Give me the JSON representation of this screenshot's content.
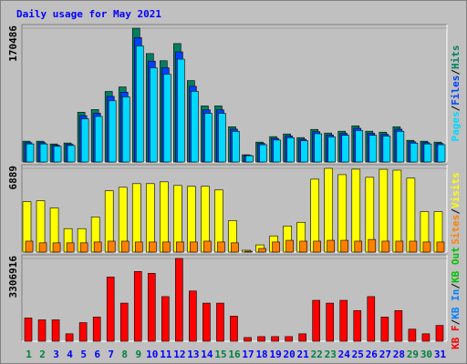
{
  "title": "Daily usage for May 2021",
  "legend_separator": "/",
  "chart_data": [
    {
      "type": "bar",
      "ylim": [
        0,
        170486
      ],
      "yticks": [
        170486
      ],
      "series": [
        {
          "name": "Hits",
          "color": "#008060",
          "values": [
            26500,
            26500,
            23000,
            24200,
            63400,
            66800,
            89900,
            95600,
            170486,
            138200,
            129000,
            150900,
            103700,
            71400,
            71400,
            44900,
            9200,
            25300,
            32300,
            35700,
            31100,
            41500,
            36900,
            39200,
            46100,
            39200,
            38000,
            44900,
            27600,
            26500,
            25300
          ]
        },
        {
          "name": "Files",
          "color": "#0040ff",
          "values": [
            24600,
            24600,
            21400,
            22500,
            59000,
            62100,
            83600,
            88900,
            158500,
            128500,
            120000,
            140300,
            96400,
            66400,
            66400,
            41800,
            8600,
            23500,
            30000,
            33200,
            28900,
            38600,
            34300,
            36500,
            42900,
            36500,
            35300,
            41800,
            25700,
            24600,
            23500
          ]
        },
        {
          "name": "Pages",
          "color": "#00d8ff",
          "values": [
            23000,
            23000,
            20000,
            21000,
            55000,
            58000,
            78000,
            83000,
            148000,
            120000,
            112000,
            131000,
            90000,
            62000,
            62000,
            39000,
            8000,
            22000,
            28000,
            31000,
            27000,
            36000,
            32000,
            34000,
            40000,
            34000,
            33000,
            39000,
            24000,
            23000,
            22000
          ]
        }
      ]
    },
    {
      "type": "bar",
      "ylim": [
        0,
        6889
      ],
      "yticks": [
        6889
      ],
      "series": [
        {
          "name": "Visits",
          "color": "#ffff00",
          "values": [
            4150,
            4220,
            3630,
            1930,
            1930,
            2890,
            5040,
            5330,
            5630,
            5630,
            5780,
            5480,
            5410,
            5410,
            5110,
            2590,
            150,
            590,
            1330,
            2150,
            2450,
            6000,
            6889,
            6370,
            6820,
            6150,
            6810,
            6740,
            6080,
            3330,
            3330
          ]
        },
        {
          "name": "Sites",
          "color": "#ff8000",
          "values": [
            900,
            760,
            760,
            760,
            760,
            830,
            900,
            900,
            830,
            830,
            830,
            830,
            830,
            900,
            830,
            760,
            70,
            300,
            830,
            970,
            900,
            900,
            970,
            970,
            900,
            1040,
            900,
            900,
            900,
            830,
            830
          ]
        }
      ]
    },
    {
      "type": "bar",
      "ylim": [
        0,
        3306916
      ],
      "yticks": [
        3306916
      ],
      "categories": [
        "1",
        "2",
        "3",
        "4",
        "5",
        "6",
        "7",
        "8",
        "9",
        "10",
        "11",
        "12",
        "13",
        "14",
        "15",
        "16",
        "17",
        "18",
        "19",
        "20",
        "21",
        "22",
        "23",
        "24",
        "25",
        "26",
        "27",
        "28",
        "29",
        "30",
        "31"
      ],
      "category_colors": [
        "#008040",
        "#008040",
        "#0000ff",
        "#0000ff",
        "#0000ff",
        "#0000ff",
        "#0000ff",
        "#008040",
        "#008040",
        "#0000ff",
        "#0000ff",
        "#0000ff",
        "#0000ff",
        "#0000ff",
        "#008040",
        "#008040",
        "#0000ff",
        "#0000ff",
        "#0000ff",
        "#0000ff",
        "#0000ff",
        "#008040",
        "#008040",
        "#0000ff",
        "#0000ff",
        "#0000ff",
        "#0000ff",
        "#0000ff",
        "#008040",
        "#008040",
        "#0000ff"
      ],
      "series": [
        {
          "name": "KB Out",
          "color": "#00c000"
        },
        {
          "name": "KB In",
          "color": "#0080ff"
        },
        {
          "name": "KB F",
          "color": "#ff0000",
          "values": [
            929000,
            854600,
            854600,
            297200,
            743100,
            966100,
            2563800,
            1523400,
            2786700,
            2712400,
            1783500,
            3306916,
            2006400,
            1523400,
            1523400,
            1003200,
            148600,
            185800,
            185800,
            185800,
            297200,
            1634900,
            1523400,
            1634900,
            1226100,
            1783500,
            966100,
            1226100,
            483000,
            297200,
            631700
          ]
        }
      ]
    }
  ]
}
